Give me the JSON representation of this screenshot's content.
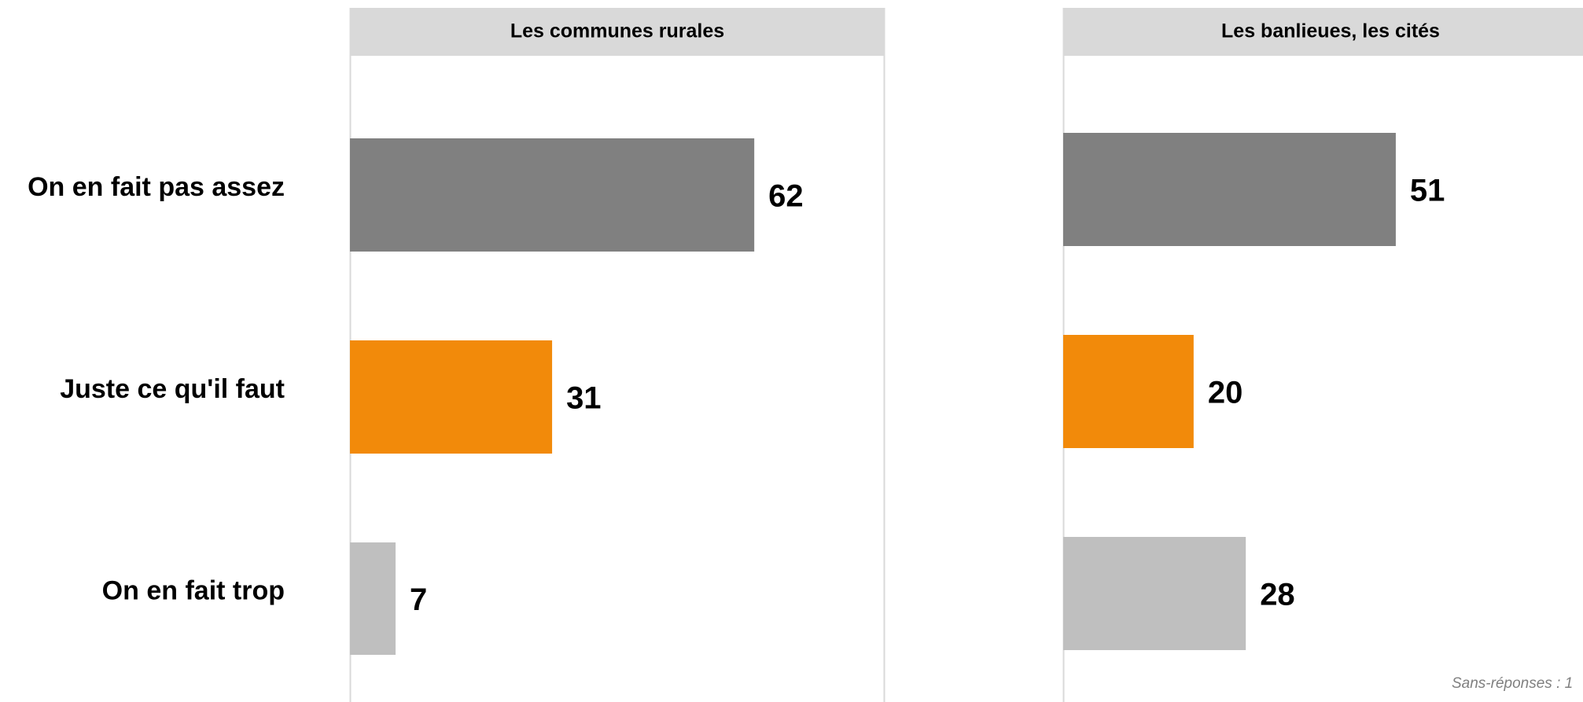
{
  "chart_data": [
    {
      "type": "bar",
      "orientation": "horizontal",
      "title": "Les communes rurales",
      "categories": [
        "On en fait pas assez",
        "Juste ce qu'il faut",
        "On en fait trop"
      ],
      "values": [
        62,
        31,
        7
      ],
      "colors": [
        "#808080",
        "#f28a0a",
        "#bfbfbf"
      ],
      "xlim": [
        0,
        82
      ]
    },
    {
      "type": "bar",
      "orientation": "horizontal",
      "title": "Les banlieues, les cités",
      "values": [
        51,
        20,
        28
      ],
      "colors": [
        "#808080",
        "#f28a0a",
        "#bfbfbf"
      ],
      "xlim": [
        0,
        82
      ],
      "annotation": "Sans-réponses : 1"
    }
  ]
}
